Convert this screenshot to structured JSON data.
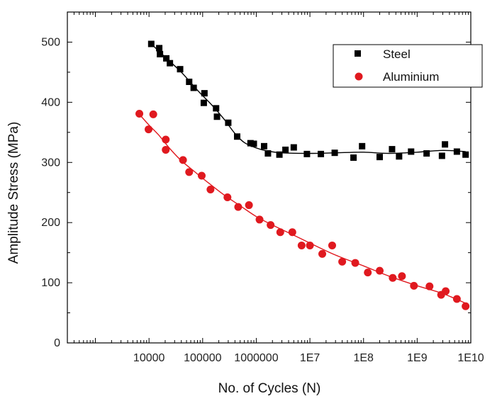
{
  "chart_data": {
    "type": "scatter",
    "title": "",
    "xlabel": "No. of Cycles (N)",
    "ylabel": "Amplitude Stress (MPa)",
    "xscale": "log",
    "xlim": [
      300,
      10000000000.0
    ],
    "ylim": [
      0,
      550
    ],
    "xticks": [
      10000,
      100000,
      1000000,
      10000000.0,
      100000000.0,
      1000000000.0,
      10000000000.0
    ],
    "xtick_labels": [
      "10000",
      "100000",
      "1000000",
      "1E7",
      "1E8",
      "1E9",
      "1E10"
    ],
    "yticks": [
      0,
      100,
      200,
      300,
      400,
      500
    ],
    "ytick_labels": [
      "0",
      "100",
      "200",
      "300",
      "400",
      "500"
    ],
    "grid": false,
    "legend_position": "top-right",
    "series": [
      {
        "name": "Steel",
        "color": "#000000",
        "marker": "square",
        "points": [
          [
            11000,
            497
          ],
          [
            15500,
            490
          ],
          [
            16000,
            480
          ],
          [
            21000,
            473
          ],
          [
            24500,
            465
          ],
          [
            38000,
            455
          ],
          [
            56000,
            434
          ],
          [
            68000,
            424
          ],
          [
            108000,
            415
          ],
          [
            105000,
            399
          ],
          [
            178000,
            390
          ],
          [
            185000,
            376
          ],
          [
            300000,
            366
          ],
          [
            440000,
            343
          ],
          [
            780000,
            332
          ],
          [
            900000,
            331
          ],
          [
            1400000,
            327
          ],
          [
            1650000,
            315
          ],
          [
            2700000,
            313
          ],
          [
            3500000,
            321
          ],
          [
            5000000,
            325
          ],
          [
            8800000,
            314
          ],
          [
            16000000,
            314
          ],
          [
            29000000,
            316
          ],
          [
            65000000,
            308
          ],
          [
            94000000,
            327
          ],
          [
            200000000,
            309
          ],
          [
            340000000,
            322
          ],
          [
            460000000,
            310
          ],
          [
            770000000,
            318
          ],
          [
            1500000000,
            315
          ],
          [
            2900000000,
            311
          ],
          [
            3300000000,
            330
          ],
          [
            5500000000,
            318
          ],
          [
            8000000000,
            313
          ]
        ],
        "fit": [
          [
            11000,
            497
          ],
          [
            20000,
            475
          ],
          [
            40000,
            450
          ],
          [
            80000,
            420
          ],
          [
            150000,
            395
          ],
          [
            250000,
            372
          ],
          [
            400000,
            348
          ],
          [
            600000,
            333
          ],
          [
            1000000,
            324
          ],
          [
            1600000,
            319
          ],
          [
            3000000,
            316
          ],
          [
            10000000,
            315
          ],
          [
            30000000,
            316
          ],
          [
            100000000,
            317
          ],
          [
            300000000,
            315
          ],
          [
            1000000000,
            317
          ],
          [
            3000000000,
            320
          ],
          [
            8000000000,
            318
          ]
        ]
      },
      {
        "name": "Aluminium",
        "color": "#e0191f",
        "marker": "circle",
        "points": [
          [
            6600,
            381
          ],
          [
            12000,
            380
          ],
          [
            9800,
            355
          ],
          [
            20500,
            338
          ],
          [
            20500,
            321
          ],
          [
            43000,
            304
          ],
          [
            56000,
            284
          ],
          [
            96000,
            278
          ],
          [
            140000,
            255
          ],
          [
            290000,
            242
          ],
          [
            460000,
            226
          ],
          [
            730000,
            229
          ],
          [
            1150000,
            205
          ],
          [
            1850000,
            196
          ],
          [
            2800000,
            184
          ],
          [
            4700000,
            184
          ],
          [
            7000000,
            162
          ],
          [
            10000000,
            162
          ],
          [
            17000000,
            148
          ],
          [
            26000000,
            162
          ],
          [
            40000000,
            135
          ],
          [
            70000000,
            133
          ],
          [
            120000000,
            117
          ],
          [
            200000000,
            120
          ],
          [
            350000000,
            108
          ],
          [
            520000000,
            111
          ],
          [
            870000000,
            95
          ],
          [
            1700000000,
            94
          ],
          [
            2800000000,
            80
          ],
          [
            3400000000,
            86
          ],
          [
            5500000000,
            73
          ],
          [
            8000000000,
            61
          ]
        ],
        "fit": [
          [
            6600,
            380
          ],
          [
            10000,
            362
          ],
          [
            15000,
            346
          ],
          [
            25000,
            322
          ],
          [
            40000,
            303
          ],
          [
            70000,
            285
          ],
          [
            120000,
            268
          ],
          [
            250000,
            246
          ],
          [
            500000,
            228
          ],
          [
            1000000,
            210
          ],
          [
            2000000,
            196
          ],
          [
            5000000,
            179
          ],
          [
            10000000,
            166
          ],
          [
            30000000,
            146
          ],
          [
            100000000,
            128
          ],
          [
            300000000,
            111
          ],
          [
            1000000000,
            95
          ],
          [
            3000000000,
            82
          ],
          [
            8000000000,
            66
          ]
        ]
      }
    ]
  }
}
